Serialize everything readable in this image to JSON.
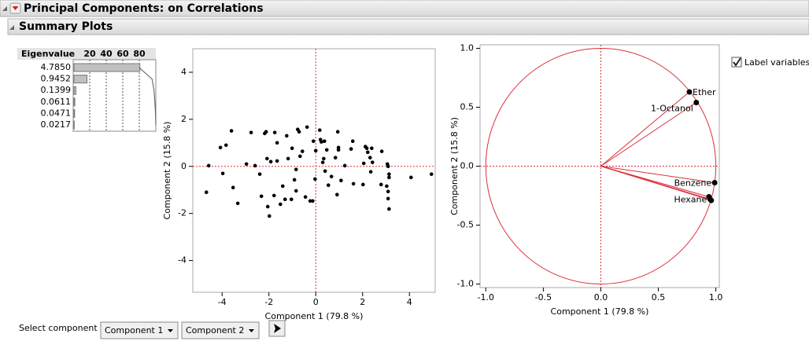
{
  "header": {
    "title": "Principal Components: on Correlations"
  },
  "section": {
    "title": "Summary Plots"
  },
  "eigen_table": {
    "type": "bar",
    "column_header": "Eigenvalue",
    "eigenvalues": [
      "4.7850",
      "0.9452",
      "0.1399",
      "0.0611",
      "0.0471",
      "0.0217"
    ],
    "percent": [
      79.75,
      15.75,
      2.33,
      1.02,
      0.78,
      0.36
    ],
    "cumulative": [
      79.75,
      95.5,
      97.83,
      98.85,
      99.64,
      100
    ],
    "xlim": [
      0,
      100
    ],
    "xticks": [
      20,
      40,
      60,
      80
    ],
    "color": "#c0c0c0"
  },
  "score_plot": {
    "type": "scatter",
    "x": [
      -4.67,
      -4.57,
      -4.07,
      -3.97,
      -3.83,
      -3.6,
      -3.53,
      -3.33,
      -2.96,
      -2.76,
      -2.59,
      -2.39,
      -2.32,
      -2.18,
      -2.12,
      -2.08,
      -2.05,
      -1.98,
      -1.92,
      -1.78,
      -1.75,
      -1.65,
      -1.65,
      -1.51,
      -1.41,
      -1.31,
      -1.24,
      -1.18,
      -1.04,
      -1.01,
      -0.91,
      -0.84,
      -0.84,
      -0.77,
      -0.71,
      -0.67,
      -0.57,
      -0.44,
      -0.37,
      -0.24,
      -0.13,
      -0.1,
      -0.03,
      0,
      0.17,
      0.2,
      0.24,
      0.3,
      0.34,
      0.37,
      0.4,
      0.47,
      0.54,
      0.67,
      0.84,
      0.91,
      0.94,
      0.97,
      0.97,
      1.08,
      1.24,
      1.51,
      1.58,
      1.61,
      2.02,
      2.05,
      2.12,
      2.18,
      2.22,
      2.32,
      2.35,
      2.39,
      2.42,
      2.79,
      2.82,
      3.03,
      3.06,
      3.09,
      3.09,
      3.13,
      3.13,
      3.13,
      3.09,
      4.07,
      4.94
    ],
    "y": [
      -1.1,
      0.03,
      0.8,
      -0.3,
      0.9,
      1.51,
      -0.9,
      -1.57,
      0.1,
      1.44,
      0.03,
      -0.33,
      -1.27,
      1.4,
      1.47,
      0.33,
      -1.71,
      -2.11,
      0.2,
      -1.24,
      1.44,
      1,
      0.23,
      -1.61,
      -0.84,
      -1.4,
      1.3,
      0.33,
      -1.4,
      0.77,
      -0.57,
      -0.13,
      -1.04,
      1.57,
      1.47,
      0.43,
      0.64,
      -1.3,
      1.67,
      -1.47,
      -1.47,
      1.07,
      -0.54,
      0.67,
      1.54,
      1.14,
      1.04,
      0.17,
      0.33,
      1.07,
      -0.2,
      0.7,
      -0.8,
      -0.43,
      0.37,
      -1.2,
      1.47,
      0.8,
      0.7,
      -0.6,
      0.03,
      0.74,
      1.07,
      -0.74,
      -0.77,
      0.13,
      0.84,
      0.77,
      0.6,
      0.37,
      -0.23,
      0.77,
      0.17,
      -0.77,
      0.64,
      -0.84,
      0.1,
      -1.07,
      -1.37,
      -1.81,
      -0.47,
      -0.33,
      0,
      -0.47,
      -0.33
    ],
    "xlim": [
      -5.25,
      5.1
    ],
    "ylim": [
      -5.35,
      5.0
    ],
    "xticks": [
      -4,
      -2,
      0,
      2,
      4
    ],
    "yticks": [
      -4,
      -2,
      0,
      2,
      4
    ],
    "xlabel": "Component 1  (79.8 %)",
    "ylabel": "Component 2  (15.8 %)",
    "color": "#000000"
  },
  "loading_plot": {
    "type": "scatter",
    "labels": [
      "Ether",
      "1-Octanol",
      "Benzene",
      null,
      null,
      "Hexane"
    ],
    "x": [
      0.77,
      0.83,
      0.99,
      0.94,
      0.96,
      0.95
    ],
    "y": [
      0.63,
      0.54,
      -0.14,
      -0.26,
      -0.29,
      -0.28
    ],
    "xlim": [
      -1.05,
      1.03
    ],
    "ylim": [
      -1.03,
      1.03
    ],
    "xticks": [
      {
        "value": -1,
        "label": "-1.0"
      },
      -0.5,
      {
        "value": 0,
        "label": "0.0"
      },
      0.5,
      {
        "value": 1,
        "label": "1.0"
      }
    ],
    "yticks": [
      {
        "value": -1,
        "label": "-1.0"
      },
      -0.5,
      {
        "value": 0,
        "label": "0.0"
      },
      0.5,
      {
        "value": 1,
        "label": "1.0"
      }
    ],
    "xlabel": "Component 1  (79.8 %)",
    "ylabel": "Component 2  (15.8 %)",
    "color": "#d9303c"
  },
  "label_variables": {
    "label": "Label variables",
    "checked": true
  },
  "controls": {
    "label": "Select component",
    "options": [
      "Component 1",
      "Component 2"
    ]
  }
}
